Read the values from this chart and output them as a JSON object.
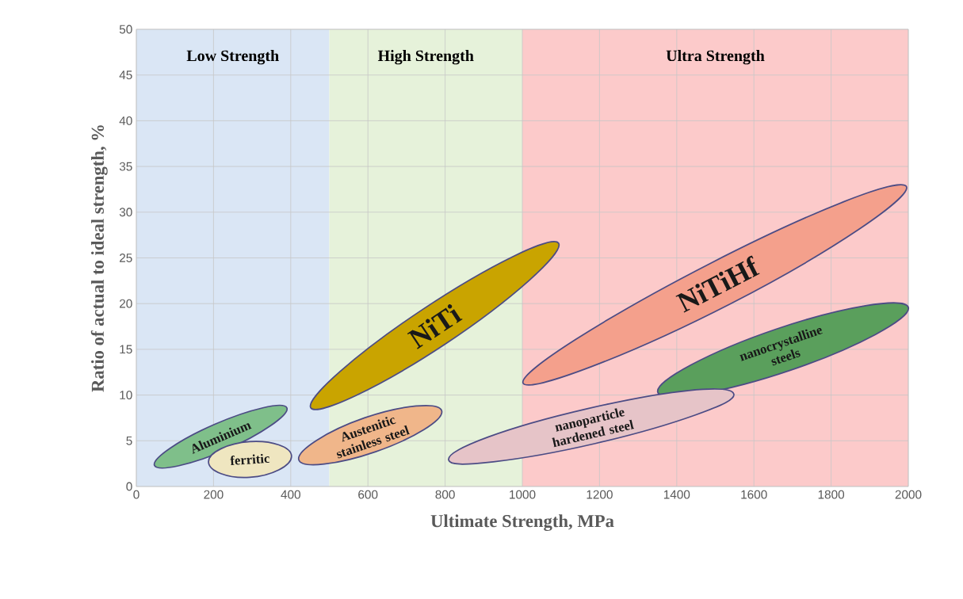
{
  "chart_data": {
    "type": "area",
    "xlabel": "Ultimate Strength, MPa",
    "ylabel": "Ratio of actual to ideal strength, %",
    "xlim": [
      0,
      2000
    ],
    "ylim": [
      0,
      50
    ],
    "xticks": [
      0,
      200,
      400,
      600,
      800,
      1000,
      1200,
      1400,
      1600,
      1800,
      2000
    ],
    "yticks": [
      0,
      5,
      10,
      15,
      20,
      25,
      30,
      35,
      40,
      45,
      50
    ],
    "grid": true,
    "bands": [
      {
        "axis": "x",
        "from": 0,
        "to": 500,
        "label": "Low Strength",
        "color": "#dae6f5"
      },
      {
        "axis": "x",
        "from": 500,
        "to": 1000,
        "label": "High Strength",
        "color": "#e6f2da"
      },
      {
        "axis": "x",
        "from": 1000,
        "to": 2000,
        "label": "Ultra Strength",
        "color": "#fccaca"
      }
    ],
    "series": [
      {
        "name": "Aluminium",
        "color": "#7fbf8a",
        "x": [
          47,
          232,
          390,
          203
        ],
        "values": [
          2.3,
          4.0,
          8.6,
          6.8
        ]
      },
      {
        "name": "ferritic",
        "color": "#efe6c0",
        "x": [
          187,
          294,
          402,
          294
        ],
        "values": [
          2.7,
          1.0,
          3.3,
          4.9
        ]
      },
      {
        "name": "Austenitic stainless steel",
        "color": "#f0b68a",
        "x": [
          421,
          620,
          791,
          591
        ],
        "values": [
          2.9,
          3.8,
          8.3,
          7.5
        ]
      },
      {
        "name": "NiTi",
        "color": "#c9a400",
        "x": [
          452,
          801,
          1094,
          743
        ],
        "values": [
          8.6,
          15.6,
          26.6,
          19.4
        ]
      },
      {
        "name": "NiTiHf",
        "color": "#f4a08c",
        "x": [
          1002,
          1540,
          1995,
          1487
        ],
        "values": [
          11.3,
          20.0,
          32.8,
          24.4
        ]
      },
      {
        "name": "nanocrystalline steels",
        "color": "#5a9f5c",
        "x": [
          1351,
          1694,
          2000,
          1657
        ],
        "values": [
          10.3,
          12.7,
          19.6,
          17.2
        ]
      },
      {
        "name": "nanoparticle hardened steel",
        "color": "#e6c4c8",
        "x": [
          809,
          925,
          1189,
          1447,
          1548,
          1432,
          1168,
          911
        ],
        "values": [
          2.9,
          2.7,
          4.7,
          7.8,
          10.1,
          10.5,
          8.5,
          5.4
        ]
      }
    ]
  }
}
